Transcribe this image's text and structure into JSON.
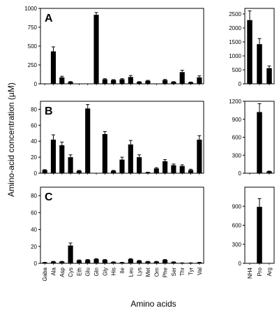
{
  "figure": {
    "ylabel": "Amino-acid concentration (µM)",
    "xlabel": "Amino acids"
  },
  "chart_data": [
    {
      "type": "bar",
      "panel": "A",
      "group": "main",
      "categories": [
        "Gaba",
        "Ala",
        "Asp",
        "Cys",
        "Eth",
        "Glu",
        "Gln",
        "Gly",
        "His",
        "Ile",
        "Leu",
        "Lys",
        "Met",
        "Orn",
        "Phe",
        "Ser",
        "Thr",
        "Tyr",
        "Val"
      ],
      "values": [
        0,
        430,
        85,
        25,
        0,
        0,
        915,
        60,
        50,
        60,
        90,
        25,
        40,
        0,
        50,
        25,
        155,
        20,
        85
      ],
      "errors": [
        0,
        60,
        15,
        5,
        0,
        0,
        30,
        8,
        6,
        8,
        20,
        4,
        6,
        0,
        8,
        4,
        25,
        3,
        20
      ],
      "ylim": [
        0,
        1000
      ],
      "yticks": [
        "0",
        "250",
        "500",
        "750",
        "1000"
      ],
      "ytick_values": [
        0,
        250,
        500,
        750,
        1000
      ]
    },
    {
      "type": "bar",
      "panel": "A",
      "group": "side",
      "categories": [
        "NH4",
        "Pro",
        "Arg"
      ],
      "values": [
        2280,
        1420,
        560
      ],
      "errors": [
        330,
        200,
        80
      ],
      "ylim": [
        0,
        2700
      ],
      "yticks": [
        "0",
        "500",
        "1000",
        "1500",
        "2000",
        "2500"
      ],
      "ytick_values": [
        0,
        500,
        1000,
        1500,
        2000,
        2500
      ]
    },
    {
      "type": "bar",
      "panel": "B",
      "group": "main",
      "categories": [
        "Gaba",
        "Ala",
        "Asp",
        "Cys",
        "Eth",
        "Glu",
        "Gln",
        "Gly",
        "His",
        "Ile",
        "Leu",
        "Lys",
        "Met",
        "Orn",
        "Phe",
        "Ser",
        "Thr",
        "Tyr",
        "Val"
      ],
      "values": [
        4,
        42,
        35,
        20,
        3,
        81,
        0,
        49,
        3,
        17,
        36,
        20,
        1,
        6,
        15,
        10,
        9,
        4,
        42
      ],
      "errors": [
        0.5,
        6,
        4,
        3,
        0.5,
        5,
        0,
        3,
        0.5,
        3,
        5,
        3,
        0.3,
        1,
        2,
        1.5,
        1.5,
        1,
        5
      ],
      "ylim": [
        0,
        90
      ],
      "yticks": [
        "0",
        "20",
        "40",
        "60",
        "80"
      ],
      "ytick_values": [
        0,
        20,
        40,
        60,
        80
      ]
    },
    {
      "type": "bar",
      "panel": "B",
      "group": "side",
      "categories": [
        "NH4",
        "Pro",
        "Arg"
      ],
      "values": [
        0,
        1020,
        30
      ],
      "errors": [
        0,
        140,
        5
      ],
      "ylim": [
        0,
        1200
      ],
      "yticks": [
        "0",
        "300",
        "600",
        "900",
        "1200"
      ],
      "ytick_values": [
        0,
        300,
        600,
        900,
        1200
      ]
    },
    {
      "type": "bar",
      "panel": "C",
      "group": "main",
      "categories": [
        "Gaba",
        "Ala",
        "Asp",
        "Cys",
        "Eth",
        "Glu",
        "Gln",
        "Gly",
        "His",
        "Ile",
        "Leu",
        "Lys",
        "Met",
        "Orn",
        "Phe",
        "Ser",
        "Thr",
        "Tyr",
        "Val"
      ],
      "values": [
        1,
        2,
        2,
        21,
        3.5,
        4,
        5,
        4,
        1.5,
        1,
        5,
        3,
        2,
        2,
        4,
        1.5,
        0.5,
        0.5,
        1
      ],
      "errors": [
        0.2,
        0.3,
        0.3,
        3,
        0.5,
        0.5,
        0.6,
        0.5,
        0.3,
        0.2,
        0.6,
        0.4,
        0.3,
        0.3,
        0.5,
        0.3,
        0.1,
        0.1,
        0.2
      ],
      "ylim": [
        0,
        90
      ],
      "yticks": [
        "0",
        "20",
        "40",
        "60",
        "80"
      ],
      "ytick_values": [
        0,
        20,
        40,
        60,
        80
      ]
    },
    {
      "type": "bar",
      "panel": "C",
      "group": "side",
      "categories": [
        "NH4",
        "Pro",
        "Arg"
      ],
      "values": [
        0,
        890,
        0
      ],
      "errors": [
        0,
        130,
        0
      ],
      "ylim": [
        0,
        1200
      ],
      "yticks": [
        "0",
        "300",
        "600",
        "900"
      ],
      "ytick_values": [
        0,
        300,
        600,
        900
      ]
    }
  ]
}
